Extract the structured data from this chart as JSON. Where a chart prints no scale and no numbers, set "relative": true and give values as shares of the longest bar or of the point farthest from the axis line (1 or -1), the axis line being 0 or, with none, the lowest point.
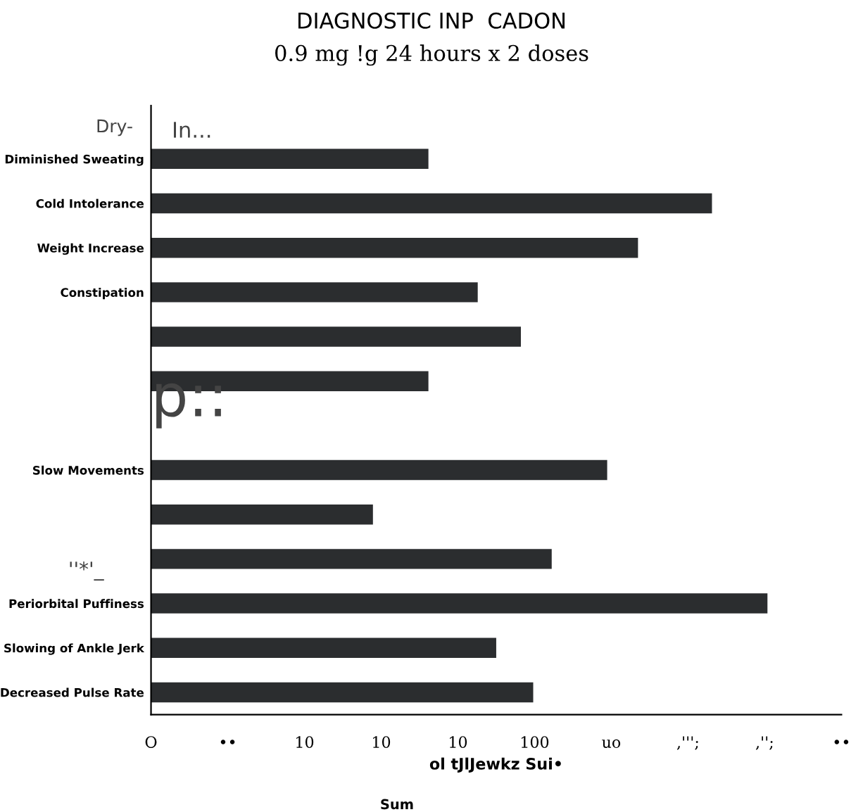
{
  "chart_data": {
    "type": "bar",
    "orientation": "horizontal",
    "relative": true,
    "title": "DIAGNOSTIC INP  CADON",
    "subtitle": "0.9 mg !g 24 hours x 2 doses",
    "xlabel": "ol tJlJewkz Sui•",
    "categories": [
      "Diminished Sweating",
      "Cold Intolerance",
      "Weight Increase",
      "Constipation",
      null,
      null,
      null,
      "Slow Movements",
      null,
      null,
      "Periorbital Puffiness",
      "Slowing of Ankle Jerk",
      "Decreased Pulse Rate"
    ],
    "values": [
      0.45,
      0.91,
      0.79,
      0.53,
      0.6,
      0.45,
      null,
      0.74,
      0.36,
      0.65,
      1,
      0.56,
      0.62
    ],
    "color": "#2b2d2f",
    "annotations": [
      "Dry-",
      "In...",
      "p::",
      "''*'_",
      "Sum",
      "O",
      "••",
      "10",
      "10",
      "10",
      "100",
      "uo",
      ",''';",
      ",'';",
      "••"
    ]
  }
}
